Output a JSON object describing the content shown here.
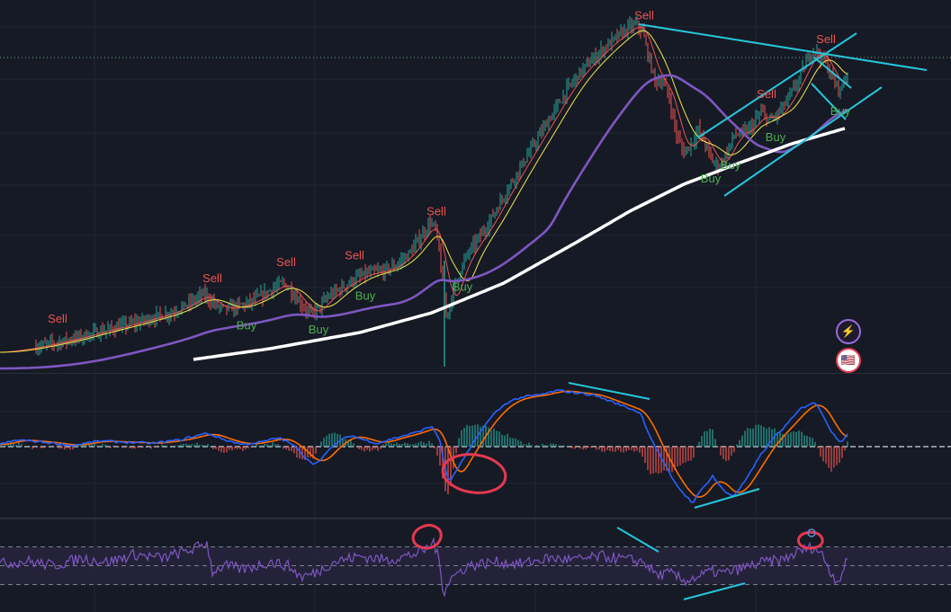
{
  "chart_data": [
    {
      "type": "line",
      "panel": "price",
      "y_scale": "log",
      "grid": true,
      "series": [
        {
          "role": "candles",
          "color": "#26a69a",
          "down_color": "#ef5350"
        },
        {
          "role": "ma_fast",
          "color": "#ef5350"
        },
        {
          "role": "ma_mid",
          "color": "#f2e74a"
        },
        {
          "role": "ma_slow",
          "color": "#7e57c2"
        },
        {
          "role": "ma_long",
          "color": "#ffffff"
        }
      ],
      "close_path": [
        [
          0,
          18
        ],
        [
          30,
          22
        ],
        [
          60,
          28
        ],
        [
          90,
          35
        ],
        [
          115,
          42
        ],
        [
          140,
          48
        ],
        [
          165,
          55
        ],
        [
          190,
          62
        ],
        [
          210,
          72
        ],
        [
          225,
          82
        ],
        [
          232,
          78
        ],
        [
          240,
          70
        ],
        [
          250,
          66
        ],
        [
          260,
          68
        ],
        [
          275,
          72
        ],
        [
          290,
          80
        ],
        [
          305,
          90
        ],
        [
          315,
          95
        ],
        [
          322,
          88
        ],
        [
          330,
          78
        ],
        [
          338,
          68
        ],
        [
          345,
          60
        ],
        [
          355,
          68
        ],
        [
          365,
          80
        ],
        [
          380,
          90
        ],
        [
          395,
          100
        ],
        [
          410,
          106
        ],
        [
          425,
          108
        ],
        [
          440,
          115
        ],
        [
          455,
          128
        ],
        [
          470,
          150
        ],
        [
          478,
          162
        ],
        [
          484,
          155
        ],
        [
          488,
          130
        ],
        [
          492,
          95
        ],
        [
          496,
          60
        ],
        [
          500,
          70
        ],
        [
          506,
          95
        ],
        [
          512,
          110
        ],
        [
          520,
          128
        ],
        [
          530,
          142
        ],
        [
          542,
          160
        ],
        [
          556,
          185
        ],
        [
          570,
          210
        ],
        [
          585,
          235
        ],
        [
          600,
          260
        ],
        [
          615,
          285
        ],
        [
          630,
          310
        ],
        [
          645,
          330
        ],
        [
          660,
          345
        ],
        [
          675,
          360
        ],
        [
          690,
          372
        ],
        [
          700,
          380
        ],
        [
          708,
          382
        ],
        [
          714,
          375
        ],
        [
          720,
          350
        ],
        [
          728,
          320
        ],
        [
          736,
          320
        ],
        [
          744,
          300
        ],
        [
          752,
          260
        ],
        [
          760,
          240
        ],
        [
          768,
          250
        ],
        [
          776,
          265
        ],
        [
          784,
          250
        ],
        [
          792,
          230
        ],
        [
          800,
          225
        ],
        [
          808,
          240
        ],
        [
          816,
          260
        ],
        [
          826,
          262
        ],
        [
          836,
          270
        ],
        [
          846,
          285
        ],
        [
          856,
          275
        ],
        [
          866,
          285
        ],
        [
          876,
          300
        ],
        [
          886,
          318
        ],
        [
          896,
          340
        ],
        [
          904,
          355
        ],
        [
          910,
          350
        ],
        [
          918,
          340
        ],
        [
          926,
          320
        ],
        [
          934,
          310
        ],
        [
          942,
          330
        ]
      ],
      "long_ma_path": [
        [
          215,
          10
        ],
        [
          300,
          22
        ],
        [
          400,
          40
        ],
        [
          480,
          62
        ],
        [
          560,
          95
        ],
        [
          640,
          140
        ],
        [
          700,
          175
        ],
        [
          760,
          205
        ],
        [
          820,
          228
        ],
        [
          880,
          250
        ],
        [
          942,
          268
        ]
      ],
      "signals": [
        {
          "label": "Sell",
          "type": "sell",
          "t": 64
        },
        {
          "label": "Sell",
          "type": "sell",
          "t": 236
        },
        {
          "label": "Buy",
          "type": "buy",
          "t": 274
        },
        {
          "label": "Sell",
          "type": "sell",
          "t": 318
        },
        {
          "label": "Buy",
          "type": "buy",
          "t": 354
        },
        {
          "label": "Sell",
          "type": "sell",
          "t": 394
        },
        {
          "label": "Buy",
          "type": "buy",
          "t": 406
        },
        {
          "label": "Sell",
          "type": "sell",
          "t": 485
        },
        {
          "label": "Buy",
          "type": "buy",
          "t": 514
        },
        {
          "label": "Sell",
          "type": "sell",
          "t": 716
        },
        {
          "label": "Buy",
          "type": "buy",
          "t": 790
        },
        {
          "label": "Buy",
          "type": "buy",
          "t": 812
        },
        {
          "label": "Sell",
          "type": "sell",
          "t": 852
        },
        {
          "label": "Buy",
          "type": "buy",
          "t": 862
        },
        {
          "label": "Sell",
          "type": "sell",
          "t": 918
        },
        {
          "label": "Buy",
          "type": "buy",
          "t": 934
        }
      ],
      "annotation_color": "#26c6da"
    },
    {
      "type": "line",
      "panel": "macd",
      "zero_line": true,
      "series": [
        {
          "role": "macd",
          "color": "#2962ff"
        },
        {
          "role": "signal",
          "color": "#ff6d00"
        },
        {
          "role": "histogram",
          "color": "#26a69a",
          "down_color": "#ef5350"
        }
      ],
      "macd_path": [
        [
          0,
          2
        ],
        [
          20,
          6
        ],
        [
          50,
          4
        ],
        [
          80,
          1
        ],
        [
          110,
          5
        ],
        [
          140,
          4
        ],
        [
          170,
          3
        ],
        [
          200,
          6
        ],
        [
          230,
          12
        ],
        [
          250,
          6
        ],
        [
          270,
          2
        ],
        [
          290,
          4
        ],
        [
          310,
          8
        ],
        [
          325,
          2
        ],
        [
          340,
          -10
        ],
        [
          350,
          -16
        ],
        [
          360,
          -8
        ],
        [
          375,
          4
        ],
        [
          390,
          10
        ],
        [
          405,
          6
        ],
        [
          420,
          3
        ],
        [
          440,
          8
        ],
        [
          460,
          12
        ],
        [
          480,
          18
        ],
        [
          488,
          8
        ],
        [
          495,
          -20
        ],
        [
          500,
          -32
        ],
        [
          508,
          -20
        ],
        [
          520,
          -5
        ],
        [
          535,
          15
        ],
        [
          550,
          30
        ],
        [
          565,
          40
        ],
        [
          580,
          44
        ],
        [
          600,
          46
        ],
        [
          620,
          50
        ],
        [
          640,
          48
        ],
        [
          660,
          46
        ],
        [
          680,
          40
        ],
        [
          700,
          34
        ],
        [
          712,
          30
        ],
        [
          722,
          10
        ],
        [
          735,
          -10
        ],
        [
          748,
          -30
        ],
        [
          760,
          -42
        ],
        [
          770,
          -50
        ],
        [
          780,
          -38
        ],
        [
          792,
          -26
        ],
        [
          805,
          -40
        ],
        [
          815,
          -44
        ],
        [
          825,
          -34
        ],
        [
          835,
          -22
        ],
        [
          845,
          -8
        ],
        [
          860,
          8
        ],
        [
          875,
          20
        ],
        [
          890,
          34
        ],
        [
          905,
          40
        ],
        [
          915,
          28
        ],
        [
          925,
          12
        ],
        [
          935,
          4
        ],
        [
          942,
          12
        ]
      ],
      "annotation_color": "#26c6da",
      "highlight_color": "#e53950"
    },
    {
      "type": "line",
      "panel": "rsi",
      "levels": [
        70,
        50,
        30
      ],
      "series": [
        {
          "role": "rsi",
          "color": "#7e57c2"
        }
      ],
      "rsi_path": [
        [
          0,
          52
        ],
        [
          30,
          55
        ],
        [
          60,
          50
        ],
        [
          90,
          58
        ],
        [
          120,
          54
        ],
        [
          150,
          62
        ],
        [
          180,
          58
        ],
        [
          210,
          66
        ],
        [
          230,
          74
        ],
        [
          236,
          44
        ],
        [
          250,
          50
        ],
        [
          270,
          46
        ],
        [
          300,
          54
        ],
        [
          320,
          50
        ],
        [
          335,
          38
        ],
        [
          350,
          42
        ],
        [
          370,
          54
        ],
        [
          400,
          60
        ],
        [
          430,
          56
        ],
        [
          460,
          62
        ],
        [
          475,
          68
        ],
        [
          482,
          76
        ],
        [
          488,
          54
        ],
        [
          493,
          22
        ],
        [
          500,
          36
        ],
        [
          520,
          50
        ],
        [
          550,
          54
        ],
        [
          580,
          52
        ],
        [
          610,
          58
        ],
        [
          640,
          56
        ],
        [
          670,
          60
        ],
        [
          700,
          56
        ],
        [
          716,
          54
        ],
        [
          730,
          40
        ],
        [
          745,
          42
        ],
        [
          760,
          34
        ],
        [
          775,
          38
        ],
        [
          790,
          44
        ],
        [
          805,
          42
        ],
        [
          820,
          46
        ],
        [
          835,
          50
        ],
        [
          850,
          54
        ],
        [
          870,
          56
        ],
        [
          890,
          66
        ],
        [
          905,
          70
        ],
        [
          915,
          60
        ],
        [
          925,
          40
        ],
        [
          932,
          34
        ],
        [
          942,
          56
        ]
      ],
      "band_color": "#2a2540",
      "annotation_color": "#26c6da",
      "highlight_color": "#e53950"
    }
  ],
  "badges": [
    {
      "icon": "lightning-icon",
      "glyph": "⚡",
      "color": "#9c6ade"
    },
    {
      "icon": "us-flag-icon",
      "glyph": "🇺🇸",
      "color": "#e53950"
    }
  ]
}
